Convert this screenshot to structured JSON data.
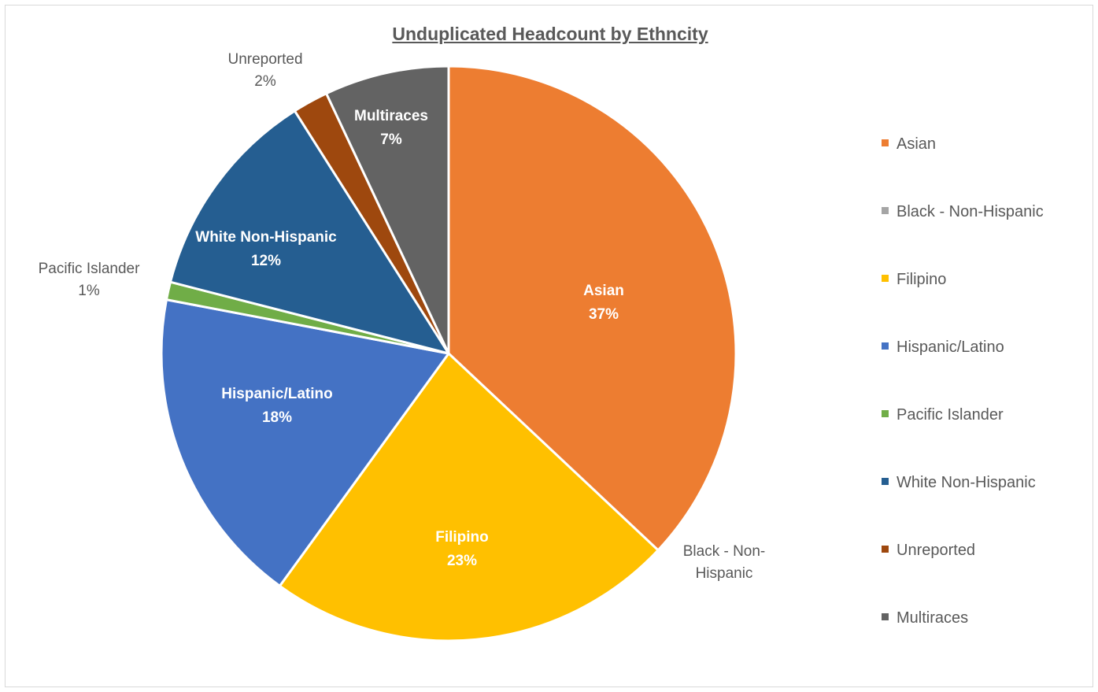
{
  "chart_data": {
    "type": "pie",
    "title": "Unduplicated Headcount by Ethncity",
    "legend_position": "right",
    "slices": [
      {
        "label": "Asian",
        "value": 37,
        "display": "37%",
        "color": "#ED7D31",
        "label_style": "inside"
      },
      {
        "label": "Black - Non-Hispanic",
        "value": 0,
        "display": "",
        "color": "#A5A5A5",
        "label_style": "outside",
        "outside_text": [
          "Black - Non-",
          "Hispanic"
        ]
      },
      {
        "label": "Filipino",
        "value": 23,
        "display": "23%",
        "color": "#FFC000",
        "label_style": "inside"
      },
      {
        "label": "Hispanic/Latino",
        "value": 18,
        "display": "18%",
        "color": "#4472C4",
        "label_style": "inside"
      },
      {
        "label": "Pacific Islander",
        "value": 1,
        "display": "1%",
        "color": "#70AD47",
        "label_style": "outside"
      },
      {
        "label": "White Non-Hispanic",
        "value": 12,
        "display": "12%",
        "color": "#255E91",
        "label_style": "inside"
      },
      {
        "label": "Unreported",
        "value": 2,
        "display": "2%",
        "color": "#9E480E",
        "label_style": "outside"
      },
      {
        "label": "Multiraces",
        "value": 7,
        "display": "7%",
        "color": "#636363",
        "label_style": "inside"
      }
    ]
  }
}
